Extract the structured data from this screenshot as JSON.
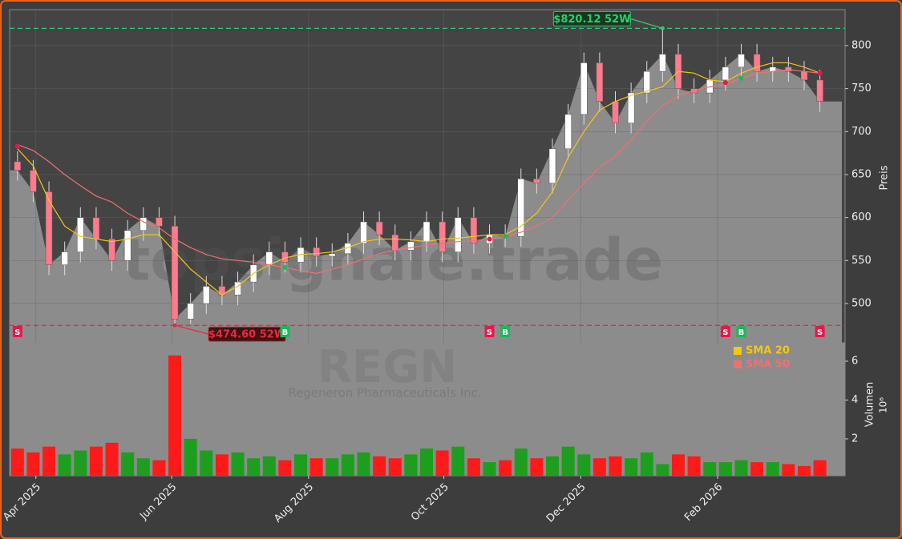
{
  "chart_data": [
    {
      "type": "candlestick",
      "ylabel": "Preis",
      "xlim": [
        -0.5,
        52.6
      ],
      "ylim": [
        454.3,
        841.9
      ],
      "yticks": [
        500,
        550,
        600,
        650,
        700,
        750,
        800
      ],
      "grid": true,
      "up_color": "#ffffff",
      "down_color": "#ff7a8c",
      "area_color": "#8c8c8c",
      "open": [
        665,
        655,
        630,
        545,
        560,
        600,
        575,
        550,
        585,
        600,
        590,
        482,
        500,
        520,
        510,
        525,
        545,
        560,
        548,
        565,
        555,
        558,
        570,
        595,
        580,
        562,
        572,
        595,
        560,
        600,
        570,
        580,
        578,
        645,
        640,
        680,
        720,
        780,
        735,
        710,
        745,
        770,
        790,
        750,
        745,
        760,
        775,
        790,
        770,
        775,
        770,
        760
      ],
      "high": [
        677,
        667,
        642,
        572,
        612,
        612,
        587,
        597,
        612,
        612,
        602,
        512,
        532,
        532,
        537,
        557,
        572,
        572,
        577,
        577,
        570,
        582,
        607,
        607,
        592,
        584,
        607,
        607,
        612,
        612,
        592,
        592,
        657,
        657,
        692,
        732,
        792,
        792,
        747,
        757,
        782,
        820.12,
        802,
        762,
        772,
        787,
        802,
        802,
        787,
        787,
        782,
        772
      ],
      "low": [
        643,
        618,
        533,
        533,
        548,
        563,
        538,
        538,
        573,
        578,
        474.6,
        476,
        488,
        498,
        498,
        513,
        533,
        536,
        536,
        543,
        543,
        546,
        558,
        568,
        550,
        550,
        560,
        548,
        548,
        558,
        558,
        566,
        566,
        628,
        628,
        668,
        708,
        723,
        698,
        698,
        733,
        758,
        738,
        733,
        733,
        748,
        763,
        758,
        758,
        758,
        748,
        723
      ],
      "close": [
        655,
        630,
        545,
        560,
        600,
        575,
        550,
        585,
        600,
        590,
        482,
        500,
        520,
        510,
        525,
        545,
        560,
        548,
        565,
        555,
        558,
        570,
        595,
        580,
        562,
        572,
        595,
        560,
        600,
        570,
        580,
        578,
        645,
        640,
        680,
        720,
        780,
        735,
        710,
        745,
        770,
        790,
        750,
        745,
        760,
        775,
        790,
        770,
        775,
        770,
        760,
        735
      ],
      "series": [
        {
          "name": "SMA 20",
          "color": "#f5c518",
          "values": [
            680,
            660,
            620,
            590,
            578,
            575,
            572,
            575,
            580,
            580,
            560,
            540,
            525,
            510,
            520,
            535,
            545,
            553,
            557,
            558,
            560,
            565,
            572,
            575,
            575,
            574,
            572,
            575,
            576,
            578,
            580,
            580,
            590,
            605,
            630,
            670,
            700,
            725,
            735,
            742,
            747,
            752,
            770,
            768,
            760,
            758,
            768,
            775,
            780,
            780,
            775,
            768
          ]
        },
        {
          "name": "SMA 50",
          "color": "#f07070",
          "values": [
            685,
            678,
            665,
            650,
            637,
            625,
            618,
            605,
            595,
            588,
            575,
            565,
            557,
            552,
            550,
            548,
            545,
            542,
            538,
            535,
            540,
            545,
            552,
            558,
            562,
            565,
            568,
            570,
            572,
            573,
            575,
            578,
            583,
            590,
            600,
            620,
            640,
            658,
            672,
            690,
            712,
            730,
            742,
            748,
            752,
            755,
            762,
            768,
            770,
            772,
            770,
            768
          ]
        }
      ],
      "annotations": [
        {
          "text": "$820.12 52W",
          "value": 820.12,
          "index": 41,
          "color": "#2ecc71"
        },
        {
          "text": "$474.60 52W",
          "value": 474.6,
          "index": 10,
          "color": "#e8283c"
        }
      ],
      "signals": [
        {
          "index": 0,
          "label": "S",
          "price": 683,
          "color": "#e8174a"
        },
        {
          "index": 17,
          "label": "B",
          "price": 542,
          "color": "#1cb85a"
        },
        {
          "index": 30,
          "label": "S",
          "price": 575,
          "color": "#e8174a"
        },
        {
          "index": 31,
          "label": "B",
          "price": 578,
          "color": "#1cb85a"
        },
        {
          "index": 45,
          "label": "S",
          "price": 757,
          "color": "#e8174a"
        },
        {
          "index": 46,
          "label": "B",
          "price": 762,
          "color": "#1cb85a"
        },
        {
          "index": 51,
          "label": "S",
          "price": 768,
          "color": "#e8174a"
        }
      ],
      "watermark": "topsignale.trade",
      "ticker": "REGN",
      "company": "Regeneron Pharmaceuticals Inc."
    },
    {
      "type": "bar",
      "ylabel": "Volumen",
      "offset_label": "10⁶",
      "xlim": [
        -0.5,
        52.6
      ],
      "ylim": [
        0.1,
        6.95
      ],
      "yticks": [
        2,
        4,
        6
      ],
      "xticks": [
        {
          "value": 1.17,
          "label": "Apr 2025"
        },
        {
          "value": 9.8,
          "label": "Jun 2025"
        },
        {
          "value": 18.5,
          "label": "Aug 2025"
        },
        {
          "value": 27.1,
          "label": "Oct 2025"
        },
        {
          "value": 35.8,
          "label": "Dec 2025"
        },
        {
          "value": 44.5,
          "label": "Feb 2026"
        }
      ],
      "up_color": "#1e9e1e",
      "down_color": "#ff1a1a",
      "values": [
        1.5,
        1.3,
        1.6,
        1.2,
        1.4,
        1.6,
        1.8,
        1.3,
        1.0,
        0.9,
        6.3,
        2.0,
        1.4,
        1.2,
        1.3,
        1.0,
        1.1,
        0.9,
        1.2,
        1.0,
        1.0,
        1.2,
        1.3,
        1.1,
        1.0,
        1.2,
        1.5,
        1.4,
        1.6,
        1.0,
        0.8,
        0.9,
        1.5,
        1.0,
        1.1,
        1.6,
        1.2,
        1.0,
        1.1,
        1.0,
        1.3,
        0.7,
        1.2,
        1.1,
        0.8,
        0.8,
        0.9,
        0.8,
        0.8,
        0.7,
        0.6,
        0.9
      ]
    }
  ]
}
